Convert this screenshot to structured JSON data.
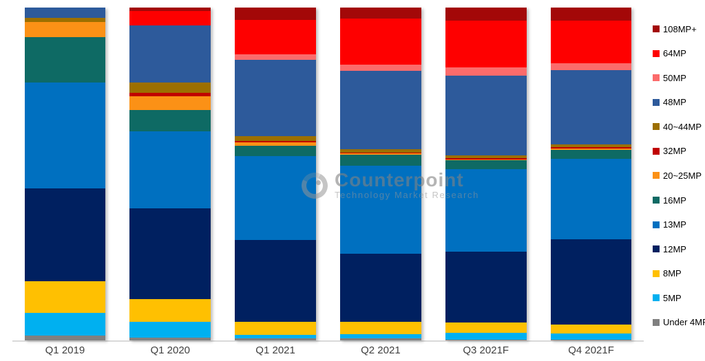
{
  "chart_data": {
    "type": "bar",
    "stacked": true,
    "orientation": "vertical",
    "unit": "percent",
    "ylim": [
      0,
      100
    ],
    "grid": false,
    "legend_position": "right",
    "categories": [
      "Q1 2019",
      "Q1 2020",
      "Q1 2021",
      "Q2 2021",
      "Q3 2021F",
      "Q4 2021F"
    ],
    "series": [
      {
        "name": "108MP+",
        "color": "#A30808",
        "values": [
          0,
          1.0,
          3.7,
          3.3,
          3.9,
          3.9
        ]
      },
      {
        "name": "64MP",
        "color": "#FE0000",
        "values": [
          0,
          4.3,
          10.3,
          13.9,
          14.1,
          12.8
        ]
      },
      {
        "name": "50MP",
        "color": "#FB6B6B",
        "values": [
          0,
          0,
          1.7,
          1.9,
          2.5,
          2.1
        ]
      },
      {
        "name": "48MP",
        "color": "#2D5A9B",
        "values": [
          3.1,
          17.3,
          23.0,
          23.4,
          24.0,
          22.4
        ]
      },
      {
        "name": "40~44MP",
        "color": "#9C6F00",
        "values": [
          1.2,
          3.1,
          1.4,
          1.0,
          0.8,
          0.8
        ]
      },
      {
        "name": "32MP",
        "color": "#C00000",
        "values": [
          0,
          1.0,
          0.5,
          0.3,
          0.3,
          0.3
        ]
      },
      {
        "name": "20~25MP",
        "color": "#FB9116",
        "values": [
          4.5,
          4.1,
          1.0,
          0.5,
          0.3,
          0.5
        ]
      },
      {
        "name": "16MP",
        "color": "#0E6A64",
        "values": [
          13.8,
          6.4,
          3.0,
          3.3,
          2.7,
          2.7
        ]
      },
      {
        "name": "13MP",
        "color": "#0070C0",
        "values": [
          31.7,
          23.1,
          25.2,
          26.3,
          24.7,
          24.2
        ]
      },
      {
        "name": "12MP",
        "color": "#002060",
        "values": [
          28.0,
          27.3,
          24.6,
          20.5,
          21.3,
          25.5
        ]
      },
      {
        "name": "8MP",
        "color": "#FFC001",
        "values": [
          9.5,
          6.8,
          3.9,
          3.7,
          3.1,
          2.7
        ]
      },
      {
        "name": "5MP",
        "color": "#00B0F0",
        "values": [
          6.8,
          4.8,
          1.2,
          1.4,
          2.1,
          1.9
        ]
      },
      {
        "name": "Under 4MP",
        "color": "#808080",
        "values": [
          1.4,
          0.8,
          0.5,
          0.5,
          0.2,
          0.2
        ]
      }
    ]
  },
  "watermark": {
    "title": "Counterpoint",
    "subtitle": "Technology Market Research"
  },
  "colors": {
    "background": "#FFFFFF",
    "axis_line": "#D9D9D9",
    "axis_label_text": "#404040",
    "legend_text": "#000000"
  }
}
